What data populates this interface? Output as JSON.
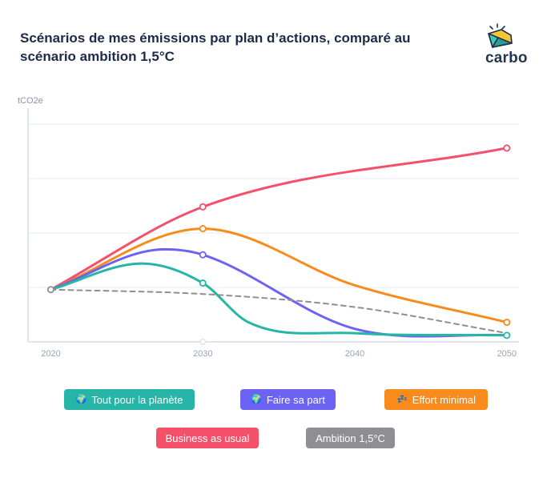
{
  "header": {
    "title_line1": "Scénarios de mes émissions par plan d’actions, comparé au",
    "title_line2": "scénario ambition 1,5°C",
    "brand": "carbo"
  },
  "legend": [
    {
      "label": "Tout pour la planète",
      "color": "#26b5a6",
      "icon": "earth-globe-icon"
    },
    {
      "label": "Faire sa part",
      "color": "#6c63f2",
      "icon": "earth-globe-icon"
    },
    {
      "label": "Effort minimal",
      "color": "#f98a1c",
      "icon": "sleeping-emoji-icon"
    },
    {
      "label": "Business as usual",
      "color": "#f5506a",
      "icon": ""
    },
    {
      "label": "Ambition 1,5°C",
      "color": "#8e8e93",
      "icon": ""
    }
  ],
  "chart_data": {
    "type": "line",
    "ylabel": "tCO2e",
    "x_ticks": [
      "2020",
      "2030",
      "2040",
      "2050"
    ],
    "xlim": [
      2018.5,
      2050.8
    ],
    "y_ticks_labeled": false,
    "ylim": [
      0,
      100
    ],
    "grid": true,
    "series": [
      {
        "name": "Business as usual",
        "color": "#f5506a",
        "dashed": false,
        "points": [
          [
            2020,
            24
          ],
          [
            2030,
            62
          ],
          [
            2050,
            89
          ]
        ],
        "markers": [
          2030,
          2050
        ]
      },
      {
        "name": "Effort minimal",
        "color": "#f98a1c",
        "dashed": false,
        "points": [
          [
            2020,
            24
          ],
          [
            2030,
            52
          ],
          [
            2040,
            26
          ],
          [
            2050,
            9
          ]
        ],
        "markers": [
          2030,
          2050
        ]
      },
      {
        "name": "Faire sa part",
        "color": "#6c63f2",
        "dashed": false,
        "points": [
          [
            2020,
            24
          ],
          [
            2027.5,
            42.5
          ],
          [
            2030,
            40
          ],
          [
            2040,
            6
          ],
          [
            2050,
            3
          ]
        ],
        "markers": [
          2030
        ]
      },
      {
        "name": "Tout pour la planète",
        "color": "#26b5a6",
        "dashed": false,
        "points": [
          [
            2020,
            24
          ],
          [
            2026,
            36
          ],
          [
            2030,
            27
          ],
          [
            2033,
            9
          ],
          [
            2040,
            4
          ],
          [
            2050,
            3
          ]
        ],
        "markers": [
          2030,
          2050
        ]
      },
      {
        "name": "Ambition 1,5°C",
        "color": "#8e8e93",
        "dashed": true,
        "points": [
          [
            2020,
            24
          ],
          [
            2030,
            22
          ],
          [
            2040,
            16
          ],
          [
            2050,
            4
          ]
        ],
        "markers": []
      }
    ]
  }
}
